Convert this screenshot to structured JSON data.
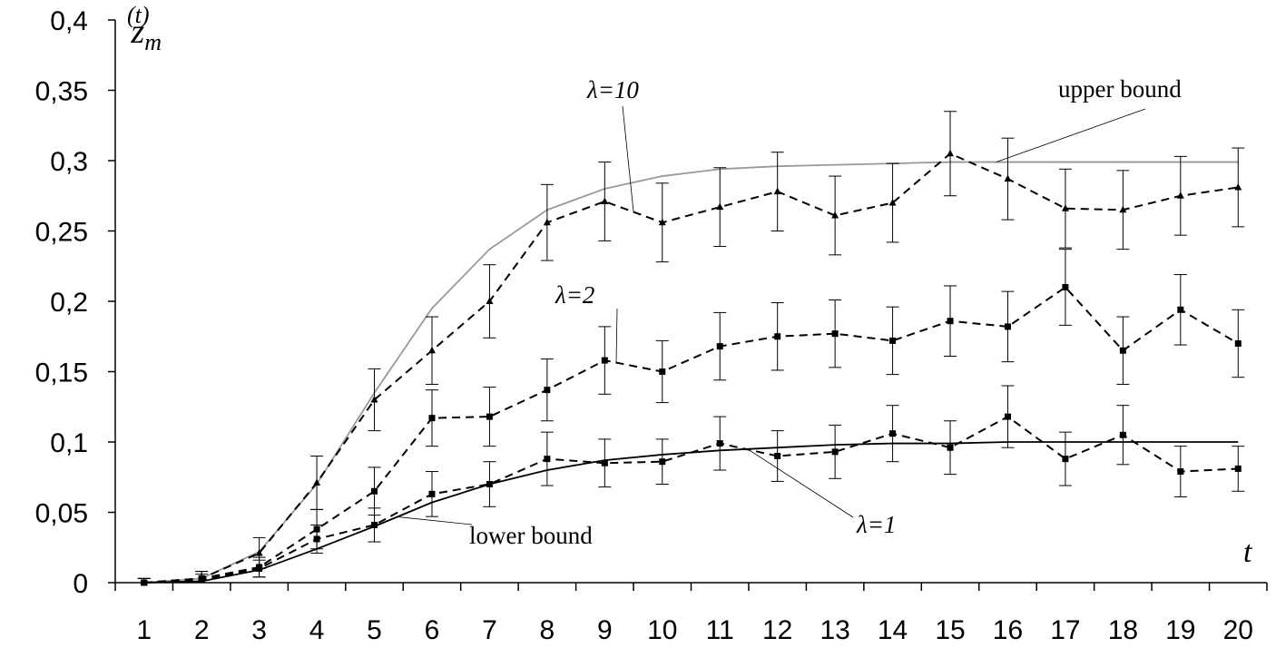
{
  "chart_data": {
    "type": "line",
    "title": "",
    "xlabel": "t",
    "ylabel_base": "z",
    "ylabel_sub": "m",
    "ylabel_sup": "(t)",
    "x": [
      1,
      2,
      3,
      4,
      5,
      6,
      7,
      8,
      9,
      10,
      11,
      12,
      13,
      14,
      15,
      16,
      17,
      18,
      19,
      20
    ],
    "x_tick_labels": [
      "1",
      "2",
      "3",
      "4",
      "5",
      "6",
      "7",
      "8",
      "9",
      "10",
      "11",
      "12",
      "13",
      "14",
      "15",
      "16",
      "17",
      "18",
      "19",
      "20"
    ],
    "ylim": [
      0,
      0.4
    ],
    "y_ticks": [
      0,
      0.05,
      0.1,
      0.15,
      0.2,
      0.25,
      0.3,
      0.35,
      0.4
    ],
    "y_tick_labels": [
      "0",
      "0,05",
      "0,1",
      "0,15",
      "0,2",
      "0,25",
      "0,3",
      "0,35",
      "0,4"
    ],
    "grid": false,
    "legend": "none",
    "series": [
      {
        "name": "upper bound",
        "style": "solid",
        "color": "#999999",
        "values": [
          0,
          0.003,
          0.022,
          0.07,
          0.135,
          0.195,
          0.237,
          0.265,
          0.28,
          0.289,
          0.294,
          0.296,
          0.297,
          0.298,
          0.299,
          0.299,
          0.299,
          0.299,
          0.299,
          0.299
        ]
      },
      {
        "name": "lower bound",
        "style": "solid",
        "color": "#000000",
        "values": [
          0,
          0.001,
          0.009,
          0.024,
          0.04,
          0.057,
          0.07,
          0.08,
          0.087,
          0.091,
          0.094,
          0.096,
          0.098,
          0.099,
          0.099,
          0.1,
          0.1,
          0.1,
          0.1,
          0.1
        ]
      },
      {
        "name": "λ=10",
        "style": "dashed",
        "marker": "triangle",
        "color": "#000000",
        "values": [
          0,
          0.003,
          0.021,
          0.071,
          0.13,
          0.165,
          0.2,
          0.256,
          0.271,
          0.256,
          0.267,
          0.278,
          0.261,
          0.27,
          0.305,
          0.287,
          0.266,
          0.265,
          0.275,
          0.281
        ],
        "error": [
          0.003,
          0.005,
          0.011,
          0.019,
          0.022,
          0.024,
          0.026,
          0.027,
          0.028,
          0.028,
          0.028,
          0.028,
          0.028,
          0.028,
          0.03,
          0.029,
          0.028,
          0.028,
          0.028,
          0.028
        ]
      },
      {
        "name": "λ=2",
        "style": "dashed",
        "marker": "square",
        "color": "#000000",
        "values": [
          0,
          0.003,
          0.011,
          0.038,
          0.065,
          0.117,
          0.118,
          0.137,
          0.158,
          0.15,
          0.168,
          0.175,
          0.177,
          0.172,
          0.186,
          0.182,
          0.21,
          0.165,
          0.194,
          0.17
        ],
        "error": [
          0.003,
          0.005,
          0.007,
          0.014,
          0.017,
          0.02,
          0.021,
          0.022,
          0.024,
          0.022,
          0.024,
          0.024,
          0.024,
          0.024,
          0.025,
          0.025,
          0.027,
          0.024,
          0.025,
          0.024
        ]
      },
      {
        "name": "λ=1",
        "style": "dashed",
        "marker": "square",
        "color": "#000000",
        "values": [
          0,
          0.002,
          0.01,
          0.031,
          0.041,
          0.063,
          0.07,
          0.088,
          0.085,
          0.086,
          0.099,
          0.09,
          0.093,
          0.106,
          0.096,
          0.118,
          0.088,
          0.105,
          0.079,
          0.081
        ],
        "error": [
          0.003,
          0.004,
          0.006,
          0.01,
          0.012,
          0.016,
          0.016,
          0.019,
          0.017,
          0.016,
          0.019,
          0.018,
          0.019,
          0.02,
          0.019,
          0.022,
          0.019,
          0.021,
          0.018,
          0.016
        ]
      }
    ],
    "annotations": [
      {
        "text": "λ=10",
        "series": "λ=10",
        "at_x": 9.5
      },
      {
        "text": "λ=2",
        "series": "λ=2",
        "at_x": 9.2
      },
      {
        "text": "λ=1",
        "series": "λ=1",
        "at_x": 11.5
      },
      {
        "text": "upper bound",
        "series": "upper bound",
        "at_x": 15.8
      },
      {
        "text": "lower bound",
        "series": "lower bound",
        "at_x": 5.4
      }
    ]
  }
}
